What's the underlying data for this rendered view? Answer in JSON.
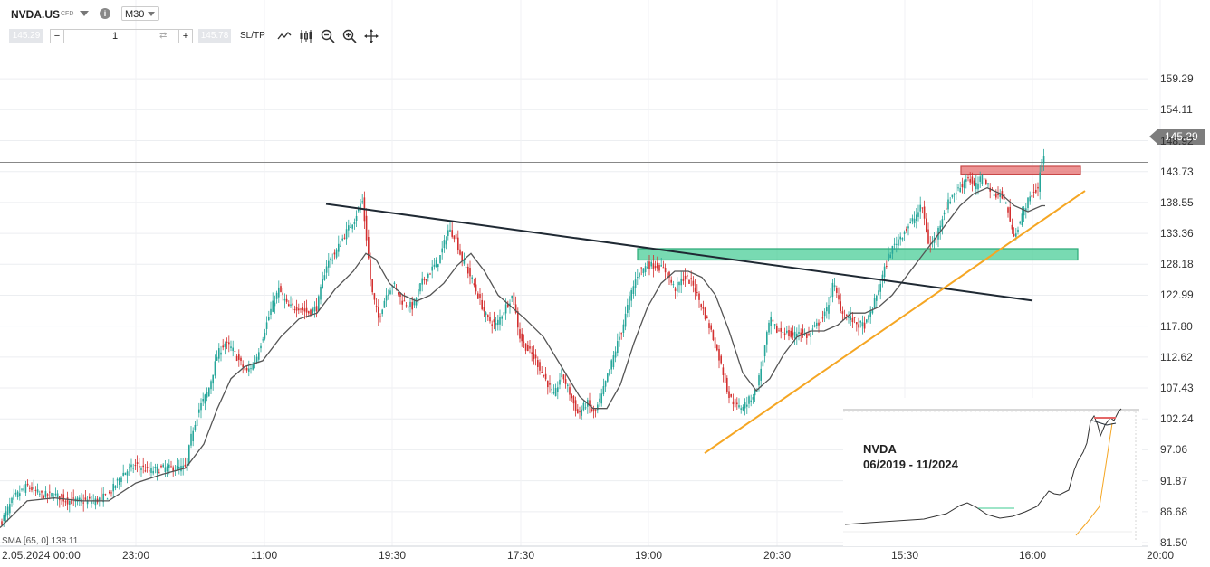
{
  "header": {
    "symbol": "NVDA.US",
    "instrument_type": "CFD",
    "timeframe": "M30",
    "bid": "145.29",
    "ask": "145.78",
    "quantity": "1",
    "sltp_label": "SL/TP",
    "minus": "−",
    "plus": "+",
    "info": "i"
  },
  "price_tag": "145.29",
  "indicator_label": "SMA [65, 0] 138.11",
  "colors": {
    "up": "#26a69a",
    "down": "#d32f2f",
    "sma": "#555555",
    "support": "#f5a623",
    "resistance_line": "#1f2933",
    "green_zone": "#3ecb92",
    "red_zone": "#e46767"
  },
  "chart_data": {
    "type": "candlestick",
    "title": "",
    "ylim": [
      81.5,
      164.47
    ],
    "y_ticks": [
      "159.29",
      "154.11",
      "148.92",
      "143.73",
      "138.55",
      "133.36",
      "128.18",
      "122.99",
      "117.80",
      "112.62",
      "107.43",
      "102.24",
      "97.06",
      "91.87",
      "86.68",
      "81.50"
    ],
    "x_ticks": [
      "2.05.2024 00:00",
      "23:00",
      "11:00",
      "19:30",
      "17:30",
      "19:00",
      "20:30",
      "15:30",
      "16:00",
      "20:00"
    ],
    "path": [
      [
        0,
        84.5
      ],
      [
        15,
        89
      ],
      [
        30,
        91
      ],
      [
        45,
        89.5
      ],
      [
        60,
        89.5
      ],
      [
        75,
        88.5
      ],
      [
        90,
        88.5
      ],
      [
        105,
        88.5
      ],
      [
        120,
        89.5
      ],
      [
        135,
        93
      ],
      [
        150,
        94.5
      ],
      [
        165,
        93.5
      ],
      [
        180,
        94
      ],
      [
        195,
        94
      ],
      [
        205,
        94
      ],
      [
        212,
        100
      ],
      [
        220,
        104
      ],
      [
        230,
        107
      ],
      [
        240,
        113
      ],
      [
        248,
        115
      ],
      [
        256,
        114
      ],
      [
        264,
        112
      ],
      [
        272,
        110
      ],
      [
        282,
        112
      ],
      [
        292,
        117
      ],
      [
        300,
        121
      ],
      [
        308,
        124
      ],
      [
        318,
        121
      ],
      [
        330,
        121
      ],
      [
        340,
        120
      ],
      [
        350,
        121
      ],
      [
        360,
        128
      ],
      [
        370,
        130
      ],
      [
        380,
        133
      ],
      [
        392,
        136
      ],
      [
        400,
        139
      ],
      [
        405,
        132
      ],
      [
        410,
        124
      ],
      [
        418,
        119
      ],
      [
        426,
        123
      ],
      [
        434,
        125
      ],
      [
        444,
        122
      ],
      [
        456,
        121
      ],
      [
        465,
        125
      ],
      [
        475,
        127
      ],
      [
        485,
        129
      ],
      [
        495,
        134
      ],
      [
        502,
        133
      ],
      [
        510,
        129
      ],
      [
        520,
        126
      ],
      [
        530,
        122
      ],
      [
        538,
        119
      ],
      [
        548,
        118
      ],
      [
        558,
        121
      ],
      [
        566,
        123
      ],
      [
        574,
        116
      ],
      [
        582,
        114
      ],
      [
        592,
        112
      ],
      [
        602,
        109
      ],
      [
        612,
        106
      ],
      [
        620,
        110
      ],
      [
        628,
        107
      ],
      [
        638,
        103
      ],
      [
        648,
        105
      ],
      [
        656,
        103
      ],
      [
        664,
        106
      ],
      [
        672,
        110
      ],
      [
        680,
        114
      ],
      [
        688,
        118
      ],
      [
        696,
        123
      ],
      [
        705,
        127
      ],
      [
        715,
        128
      ],
      [
        725,
        128
      ],
      [
        735,
        127
      ],
      [
        745,
        124
      ],
      [
        755,
        126
      ],
      [
        765,
        125
      ],
      [
        775,
        121
      ],
      [
        785,
        117
      ],
      [
        795,
        112
      ],
      [
        805,
        106
      ],
      [
        815,
        104
      ],
      [
        825,
        105
      ],
      [
        835,
        107
      ],
      [
        842,
        112
      ],
      [
        850,
        119
      ],
      [
        858,
        117
      ],
      [
        866,
        117
      ],
      [
        874,
        116
      ],
      [
        882,
        117
      ],
      [
        892,
        116
      ],
      [
        902,
        118
      ],
      [
        912,
        120
      ],
      [
        920,
        125
      ],
      [
        930,
        120
      ],
      [
        940,
        119
      ],
      [
        948,
        118
      ],
      [
        956,
        118
      ],
      [
        966,
        122
      ],
      [
        974,
        126
      ],
      [
        982,
        130
      ],
      [
        990,
        132
      ],
      [
        1000,
        134
      ],
      [
        1010,
        136
      ],
      [
        1018,
        138
      ],
      [
        1026,
        131
      ],
      [
        1034,
        133
      ],
      [
        1042,
        137
      ],
      [
        1052,
        140
      ],
      [
        1060,
        141
      ],
      [
        1068,
        143
      ],
      [
        1076,
        141
      ],
      [
        1086,
        143
      ],
      [
        1096,
        140
      ],
      [
        1104,
        140
      ],
      [
        1112,
        138
      ],
      [
        1118,
        133
      ],
      [
        1126,
        135
      ],
      [
        1132,
        138
      ],
      [
        1140,
        140
      ],
      [
        1146,
        141
      ],
      [
        1150,
        145.5
      ],
      [
        1154,
        147
      ]
    ],
    "sma": [
      [
        0,
        84
      ],
      [
        30,
        88.5
      ],
      [
        60,
        89
      ],
      [
        90,
        88.5
      ],
      [
        120,
        88.5
      ],
      [
        150,
        91.5
      ],
      [
        180,
        93
      ],
      [
        205,
        94
      ],
      [
        225,
        98
      ],
      [
        240,
        104
      ],
      [
        255,
        109
      ],
      [
        270,
        111
      ],
      [
        290,
        112
      ],
      [
        310,
        116
      ],
      [
        330,
        119
      ],
      [
        350,
        120
      ],
      [
        370,
        124
      ],
      [
        390,
        127
      ],
      [
        404,
        130
      ],
      [
        415,
        129
      ],
      [
        430,
        125
      ],
      [
        445,
        123
      ],
      [
        460,
        122
      ],
      [
        475,
        123
      ],
      [
        490,
        125
      ],
      [
        505,
        128
      ],
      [
        520,
        130
      ],
      [
        535,
        127
      ],
      [
        550,
        123
      ],
      [
        565,
        121
      ],
      [
        580,
        119
      ],
      [
        600,
        116
      ],
      [
        620,
        111
      ],
      [
        640,
        106
      ],
      [
        655,
        104
      ],
      [
        670,
        104
      ],
      [
        685,
        108
      ],
      [
        700,
        115
      ],
      [
        715,
        121
      ],
      [
        730,
        125
      ],
      [
        745,
        127
      ],
      [
        760,
        127
      ],
      [
        775,
        126
      ],
      [
        790,
        123
      ],
      [
        805,
        117
      ],
      [
        820,
        110
      ],
      [
        835,
        107
      ],
      [
        850,
        109
      ],
      [
        865,
        113
      ],
      [
        880,
        116
      ],
      [
        895,
        117
      ],
      [
        910,
        117
      ],
      [
        925,
        118
      ],
      [
        940,
        120
      ],
      [
        955,
        120
      ],
      [
        970,
        121
      ],
      [
        985,
        123
      ],
      [
        1000,
        126
      ],
      [
        1015,
        129
      ],
      [
        1030,
        132
      ],
      [
        1045,
        135
      ],
      [
        1060,
        138
      ],
      [
        1075,
        140
      ],
      [
        1090,
        141
      ],
      [
        1105,
        140
      ],
      [
        1120,
        138
      ],
      [
        1135,
        137
      ],
      [
        1150,
        138
      ],
      [
        1154,
        138
      ]
    ],
    "annotations": {
      "resistance_line": [
        [
          360,
          138.3
        ],
        [
          1140,
          122.1
        ]
      ],
      "support_line": [
        [
          778,
          96.5
        ],
        [
          1198,
          140.5
        ]
      ],
      "green_zone": [
        [
          704,
          1190
        ],
        [
          128.9,
          130.8
        ]
      ],
      "red_zone": [
        [
          1061,
          1193
        ],
        [
          143.3,
          144.6
        ]
      ],
      "price_line": 145.29
    },
    "inset": {
      "title": "NVDA",
      "subtitle": "06/2019 - 11/2024"
    }
  }
}
